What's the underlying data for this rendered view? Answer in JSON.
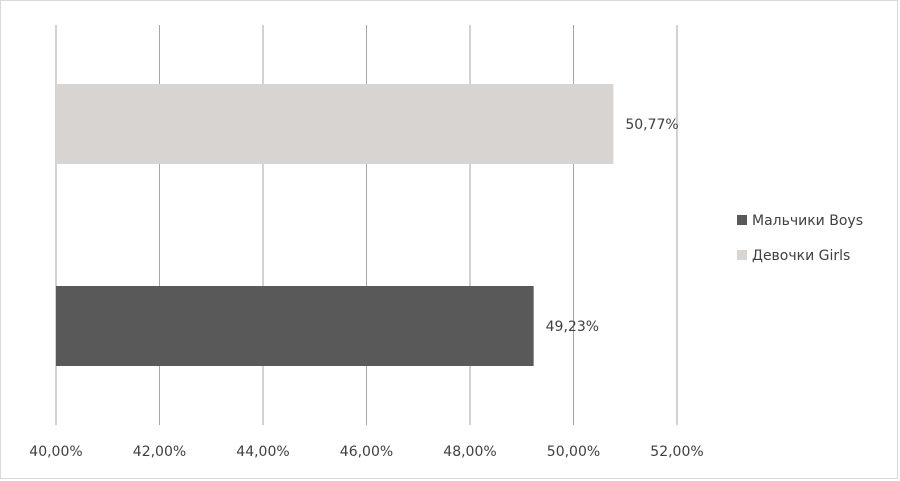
{
  "chart_data": {
    "type": "bar",
    "orientation": "horizontal",
    "categories": [
      null
    ],
    "series": [
      {
        "name": "Мальчики Boys",
        "color": "#595959",
        "values": [
          49.23
        ],
        "value_labels": [
          "49,23%"
        ]
      },
      {
        "name": "Девочки Girls",
        "color": "#d7d4d1",
        "values": [
          50.77
        ],
        "value_labels": [
          "50,77%"
        ]
      }
    ],
    "xlim": [
      40,
      52
    ],
    "xticks": [
      {
        "value": 40,
        "label": "40,00%"
      },
      {
        "value": 42,
        "label": "42,00%"
      },
      {
        "value": 44,
        "label": "44,00%"
      },
      {
        "value": 46,
        "label": "46,00%"
      },
      {
        "value": 48,
        "label": "48,00%"
      },
      {
        "value": 50,
        "label": "50,00%"
      },
      {
        "value": 52,
        "label": "52,00%"
      }
    ],
    "grid": true,
    "legend": "right"
  }
}
